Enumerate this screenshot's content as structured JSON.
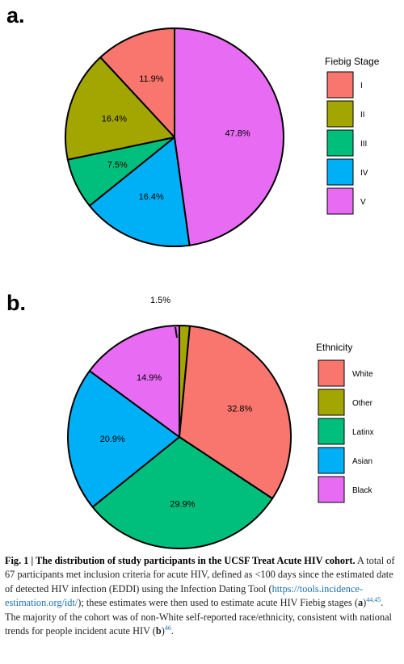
{
  "chart_data": [
    {
      "type": "pie",
      "panel": "a.",
      "legend_title": "Fiebig Stage",
      "legend_position": "right",
      "categories": [
        "I",
        "II",
        "III",
        "IV",
        "V"
      ],
      "values": [
        11.9,
        16.4,
        7.5,
        16.4,
        47.8
      ],
      "labels": [
        "11.9%",
        "16.4%",
        "7.5%",
        "16.4%",
        "47.8%"
      ],
      "colors": [
        "#F8766D",
        "#A3A500",
        "#00BF7D",
        "#00B0F6",
        "#E76BF3"
      ],
      "direction": "counterclockwise from 12 o'clock"
    },
    {
      "type": "pie",
      "panel": "b.",
      "legend_title": "Ethnicity",
      "legend_position": "right",
      "categories": [
        "White",
        "Other",
        "Latinx",
        "Asian",
        "Black"
      ],
      "values": [
        32.8,
        1.5,
        29.9,
        20.9,
        14.9
      ],
      "labels": [
        "32.8%",
        "1.5%",
        "29.9%",
        "20.9%",
        "14.9%"
      ],
      "colors": [
        "#F8766D",
        "#A3A500",
        "#00BF7D",
        "#00B0F6",
        "#E76BF3"
      ],
      "slice_order": [
        "Other",
        "White",
        "Latinx",
        "Asian",
        "Black"
      ],
      "direction": "clockwise from 12 o'clock",
      "callout": "1.5%"
    }
  ],
  "caption": {
    "fig_label": "Fig. 1 | ",
    "title": "The distribution of study participants in the UCSF Treat Acute HIV cohort.",
    "text1": " A total of 67 participants met inclusion criteria for acute HIV, defined as <100 days since the estimated date of detected HIV infection (EDDI) using the Infection Dating Tool (",
    "link": "https://tools.incidence-estimation.org/idt/",
    "text2": "); these estimates were then used to estimate acute HIV Fiebig stages (",
    "ref_a_letter": "a",
    "ref_a_close": ")",
    "ref_a_sup": "44,45",
    "text3": ". The majority of the cohort was of non-White self-reported race/ethnicity, consistent with national trends for people incident acute HIV (",
    "ref_b_letter": "b",
    "ref_b_close": ")",
    "ref_b_sup": "46",
    "text4": "."
  }
}
